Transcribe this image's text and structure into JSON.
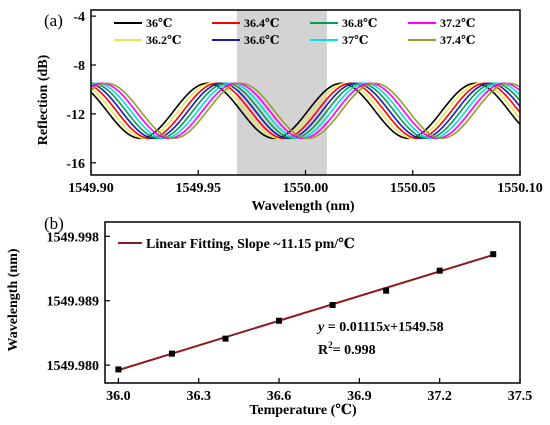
{
  "colors": {
    "axis": "#000000",
    "shade": "#d3d3d3",
    "fit_line": "#8b1a1a",
    "marker": "#000000"
  },
  "chart_data": [
    {
      "panel_label": "(a)",
      "type": "line",
      "xlabel": "Wavelength (nm)",
      "ylabel": "Reflection (dB)",
      "xlim": [
        1549.9,
        1550.1
      ],
      "ylim": [
        -17,
        -3.5
      ],
      "xticks": [
        "1549.90",
        "1549.95",
        "1550.00",
        "1550.05",
        "1550.10"
      ],
      "yticks": [
        "-4",
        "-8",
        "-12",
        "-16"
      ],
      "ytick_values": [
        -4,
        -8,
        -12,
        -16
      ],
      "xtick_values": [
        1549.9,
        1549.95,
        1550.0,
        1550.05,
        1550.1
      ],
      "shaded_band": [
        1549.968,
        1550.01
      ],
      "spectrum": {
        "period": 0.0625,
        "max_db": -9.5,
        "min_db": -14.0,
        "ref_min_wavelength": 1549.923,
        "shift_per_degC": 0.01115
      },
      "legend_position": "top",
      "series": [
        {
          "name": "36℃",
          "temperature": 36.0,
          "color": "#000000"
        },
        {
          "name": "36.4℃",
          "temperature": 36.4,
          "color": "#ff0000"
        },
        {
          "name": "36.8℃",
          "temperature": 36.8,
          "color": "#00a050"
        },
        {
          "name": "37.2℃",
          "temperature": 37.2,
          "color": "#ff00ff"
        },
        {
          "name": "36.2℃",
          "temperature": 36.2,
          "color": "#e8e850"
        },
        {
          "name": "36.6℃",
          "temperature": 36.6,
          "color": "#1a1ab4"
        },
        {
          "name": "37℃",
          "temperature": 37.0,
          "color": "#00e0e0"
        },
        {
          "name": "37.4℃",
          "temperature": 37.4,
          "color": "#9a9a2e"
        }
      ]
    },
    {
      "panel_label": "(b)",
      "type": "scatter",
      "xlabel": "Temperature (℃)",
      "ylabel": "Wavelength (nm)",
      "xlim": [
        35.95,
        37.5
      ],
      "ylim": [
        1549.9775,
        1550.0
      ],
      "xticks": [
        "36.0",
        "36.3",
        "36.6",
        "36.9",
        "37.2",
        "37.5"
      ],
      "xtick_values": [
        36.0,
        36.3,
        36.6,
        36.9,
        37.2,
        37.5
      ],
      "yticks": [
        "1549.980",
        "1549.989",
        "1549.998"
      ],
      "ytick_values": [
        1549.98,
        1549.989,
        1549.998
      ],
      "points": {
        "x": [
          36.0,
          36.2,
          36.4,
          36.6,
          36.8,
          37.0,
          37.2,
          37.4
        ],
        "y": [
          1549.9794,
          1549.9816,
          1549.9837,
          1549.9862,
          1549.9884,
          1549.9904,
          1549.9932,
          1549.9955
        ]
      },
      "fit": {
        "legend": "Linear Fitting, Slope ~11.15 pm/℃",
        "equation_y": "y",
        "equation_rest": " = 0.01115",
        "equation_x": "x",
        "equation_tail": "+1549.58",
        "r2_label": "R",
        "r2_sup": "2",
        "r2_value": "= 0.998",
        "x_range": [
          36.0,
          37.4
        ],
        "y_range": [
          1549.9793,
          1549.9954
        ]
      }
    }
  ]
}
